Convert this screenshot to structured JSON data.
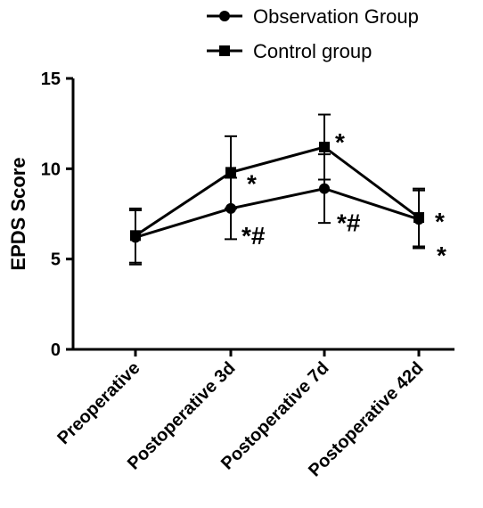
{
  "chart_data": {
    "type": "line",
    "ylabel": "EPDS Score",
    "xlabel": "",
    "ylim": [
      0,
      15
    ],
    "yticks": [
      0,
      5,
      10,
      15
    ],
    "categories": [
      "Preoperative",
      "Postoperative 3d",
      "Postoperative 7d",
      "Postoperative 42d"
    ],
    "legend_position": "top-right",
    "series": [
      {
        "name": "Observation Group",
        "marker": "circle",
        "values": [
          6.2,
          7.8,
          8.9,
          7.2
        ],
        "error": [
          1.5,
          1.7,
          1.9,
          1.6
        ],
        "color": "#000000"
      },
      {
        "name": "Control group",
        "marker": "square",
        "values": [
          6.3,
          9.8,
          11.2,
          7.3
        ],
        "error": [
          1.5,
          2.0,
          1.8,
          1.6
        ],
        "color": "#000000"
      }
    ],
    "annotations": [
      {
        "category": "Postoperative 3d",
        "text": "*",
        "series": "Control group"
      },
      {
        "category": "Postoperative 3d",
        "text": "*#",
        "series": "Observation Group"
      },
      {
        "category": "Postoperative 7d",
        "text": "*",
        "series": "Control group"
      },
      {
        "category": "Postoperative 7d",
        "text": "*#",
        "series": "Observation Group"
      },
      {
        "category": "Postoperative 42d",
        "text": "*",
        "series": "Control group"
      },
      {
        "category": "Postoperative 42d",
        "text": "*",
        "series": "Observation Group"
      }
    ]
  }
}
